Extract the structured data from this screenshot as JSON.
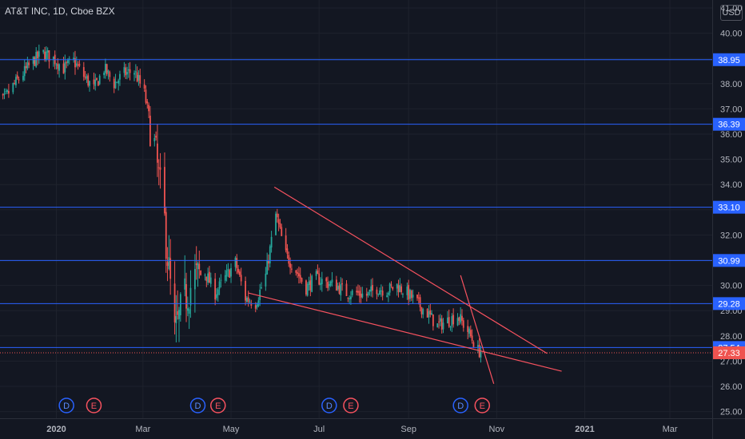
{
  "header": {
    "title": "AT&T INC, 1D, Cboe BZX",
    "currency": "USD"
  },
  "colors": {
    "background": "#131722",
    "up": "#26a69a",
    "down": "#ef5350",
    "level_line": "#2962ff",
    "trendline": "#f7525f",
    "text": "#b2b5be"
  },
  "chart_data": {
    "type": "candlestick",
    "y_ticks": [
      25,
      26,
      27,
      28,
      29,
      30,
      31,
      32,
      33,
      34,
      35,
      36,
      37,
      38,
      39,
      40,
      41
    ],
    "y_tick_labels": [
      "25.00",
      "26.00",
      "27.00",
      "28.00",
      "29.00",
      "30.00",
      "31.00",
      "32.00",
      "33.00",
      "34.00",
      "35.00",
      "36.00",
      "37.00",
      "38.00",
      "39.00",
      "40.00",
      "41.00"
    ],
    "x_ticks": [
      {
        "label": "2020",
        "date": "2020-01-01"
      },
      {
        "label": "Mar",
        "date": "2020-03-01"
      },
      {
        "label": "May",
        "date": "2020-05-01"
      },
      {
        "label": "Jul",
        "date": "2020-07-01"
      },
      {
        "label": "Sep",
        "date": "2020-09-01"
      },
      {
        "label": "Nov",
        "date": "2020-11-01"
      },
      {
        "label": "2021",
        "date": "2021-01-01"
      },
      {
        "label": "Mar",
        "date": "2021-03-01"
      }
    ],
    "horizontal_levels": [
      38.95,
      36.39,
      33.1,
      30.99,
      29.28,
      27.54
    ],
    "horizontal_level_labels": [
      "38.95",
      "36.39",
      "33.10",
      "30.99",
      "29.28",
      "27.54"
    ],
    "last_price": 27.33,
    "last_price_label": "27.33",
    "trendlines": [
      {
        "from": {
          "date": "2020-05-31",
          "price": 33.9
        },
        "to": {
          "date": "2020-12-06",
          "price": 27.3
        }
      },
      {
        "from": {
          "date": "2020-05-13",
          "price": 29.7
        },
        "to": {
          "date": "2020-12-16",
          "price": 26.6
        }
      },
      {
        "from": {
          "date": "2020-10-07",
          "price": 30.4
        },
        "to": {
          "date": "2020-10-30",
          "price": 26.1
        }
      }
    ],
    "events": [
      {
        "letter": "D",
        "date": "2020-01-08"
      },
      {
        "letter": "E",
        "date": "2020-01-27"
      },
      {
        "letter": "D",
        "date": "2020-04-08"
      },
      {
        "letter": "E",
        "date": "2020-04-22"
      },
      {
        "letter": "D",
        "date": "2020-07-08"
      },
      {
        "letter": "E",
        "date": "2020-07-23"
      },
      {
        "letter": "D",
        "date": "2020-10-07"
      },
      {
        "letter": "E",
        "date": "2020-10-22"
      }
    ],
    "price_path": [
      [
        "2019-11-18",
        37.6
      ],
      [
        "2019-11-25",
        37.3
      ],
      [
        "2019-12-02",
        37.9
      ],
      [
        "2019-12-09",
        38.4
      ],
      [
        "2019-12-16",
        38.9
      ],
      [
        "2019-12-23",
        39.2
      ],
      [
        "2019-12-30",
        39.0
      ],
      [
        "2020-01-06",
        38.6
      ],
      [
        "2020-01-13",
        38.9
      ],
      [
        "2020-01-20",
        38.3
      ],
      [
        "2020-01-27",
        37.8
      ],
      [
        "2020-02-03",
        38.6
      ],
      [
        "2020-02-10",
        38.0
      ],
      [
        "2020-02-17",
        38.4
      ],
      [
        "2020-02-24",
        38.5
      ],
      [
        "2020-03-02",
        37.6
      ],
      [
        "2020-03-09",
        35.5
      ],
      [
        "2020-03-16",
        32.5
      ],
      [
        "2020-03-23",
        28.0
      ],
      [
        "2020-03-30",
        29.5
      ],
      [
        "2020-04-06",
        30.3
      ],
      [
        "2020-04-13",
        30.5
      ],
      [
        "2020-04-20",
        29.7
      ],
      [
        "2020-04-27",
        30.3
      ],
      [
        "2020-05-04",
        30.9
      ],
      [
        "2020-05-11",
        29.5
      ],
      [
        "2020-05-18",
        29.3
      ],
      [
        "2020-05-25",
        30.4
      ],
      [
        "2020-06-01",
        32.8
      ],
      [
        "2020-06-08",
        31.2
      ],
      [
        "2020-06-15",
        30.6
      ],
      [
        "2020-06-22",
        29.9
      ],
      [
        "2020-06-29",
        30.3
      ],
      [
        "2020-07-06",
        30.1
      ],
      [
        "2020-07-13",
        30.0
      ],
      [
        "2020-07-20",
        29.7
      ],
      [
        "2020-07-27",
        29.7
      ],
      [
        "2020-08-03",
        29.6
      ],
      [
        "2020-08-10",
        29.9
      ],
      [
        "2020-08-17",
        29.8
      ],
      [
        "2020-08-24",
        30.0
      ],
      [
        "2020-08-31",
        29.7
      ],
      [
        "2020-09-07",
        29.3
      ],
      [
        "2020-09-14",
        28.9
      ],
      [
        "2020-09-21",
        28.4
      ],
      [
        "2020-09-28",
        28.6
      ],
      [
        "2020-10-05",
        28.8
      ],
      [
        "2020-10-12",
        28.2
      ],
      [
        "2020-10-19",
        27.4
      ]
    ],
    "first_date": "2019-11-18",
    "last_date": "2020-10-21"
  }
}
